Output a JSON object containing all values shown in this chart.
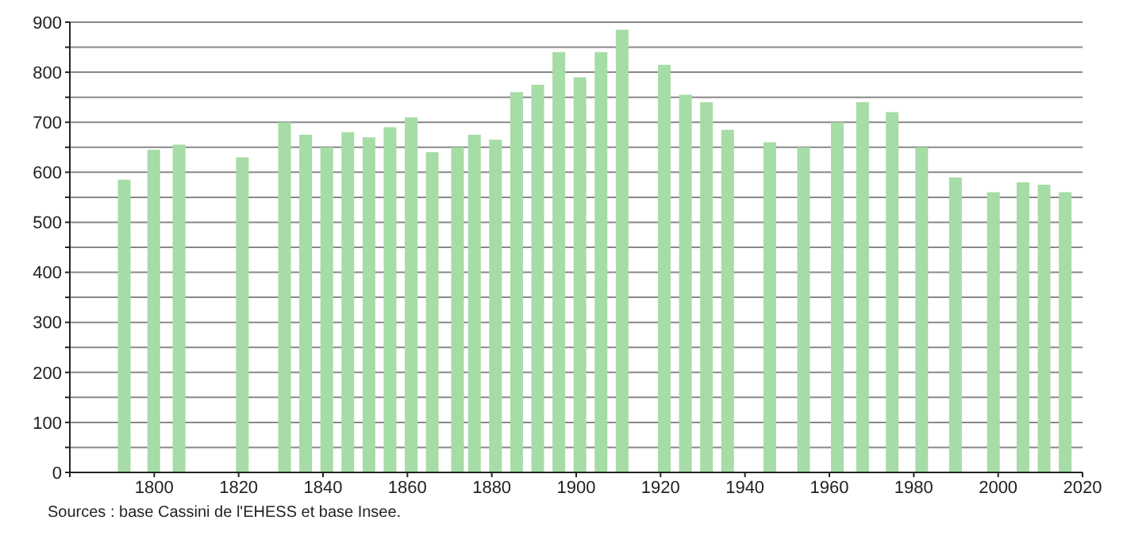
{
  "chart_data": {
    "type": "bar",
    "x": [
      1793,
      1800,
      1806,
      1821,
      1831,
      1836,
      1841,
      1846,
      1851,
      1856,
      1861,
      1866,
      1872,
      1876,
      1881,
      1886,
      1891,
      1896,
      1901,
      1906,
      1911,
      1921,
      1926,
      1931,
      1936,
      1946,
      1954,
      1962,
      1968,
      1975,
      1982,
      1990,
      1999,
      2006,
      2011,
      2016
    ],
    "values": [
      585,
      645,
      655,
      630,
      700,
      675,
      650,
      680,
      670,
      690,
      710,
      640,
      650,
      675,
      665,
      760,
      775,
      840,
      790,
      840,
      885,
      815,
      755,
      740,
      685,
      660,
      650,
      700,
      740,
      720,
      650,
      590,
      560,
      580,
      575,
      560
    ],
    "color": "#a6dca6",
    "xlim": [
      1780,
      2020
    ],
    "xticks": [
      {
        "value": 1780,
        "label": null
      },
      1800,
      1820,
      1840,
      1860,
      1880,
      1900,
      1920,
      1940,
      1960,
      1980,
      2000,
      2020
    ],
    "ylim": [
      0,
      900
    ],
    "yticks": [
      0,
      {
        "value": 50,
        "label": null
      },
      100,
      {
        "value": 150,
        "label": null
      },
      200,
      {
        "value": 250,
        "label": null
      },
      300,
      {
        "value": 350,
        "label": null
      },
      400,
      {
        "value": 450,
        "label": null
      },
      500,
      {
        "value": 550,
        "label": null
      },
      600,
      {
        "value": 650,
        "label": null
      },
      700,
      {
        "value": 750,
        "label": null
      },
      800,
      {
        "value": 850,
        "label": null
      },
      900
    ],
    "grid": "y",
    "legend": false,
    "annotations": [
      "Sources : base Cassini de l'EHESS et base Insee."
    ]
  }
}
